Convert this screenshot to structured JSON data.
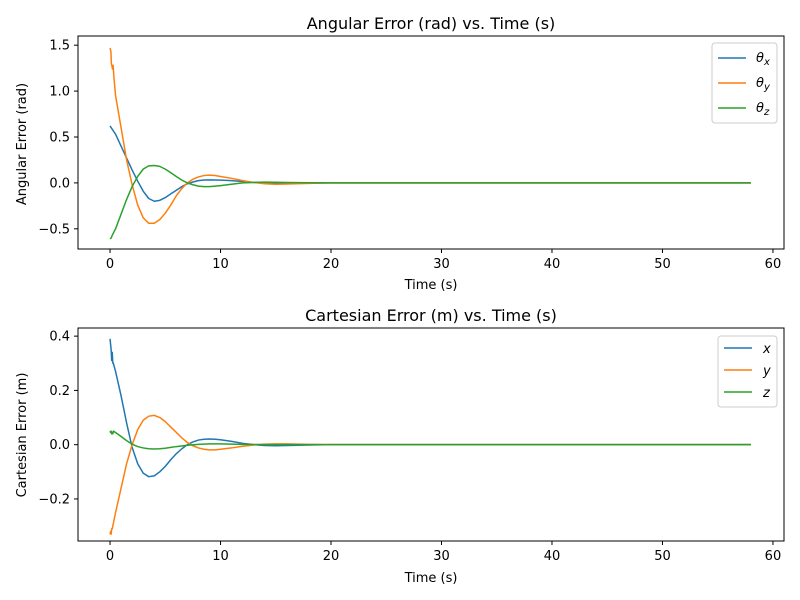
{
  "colors": {
    "c1": "#1f77b4",
    "c2": "#ff7f0e",
    "c3": "#2ca02c"
  },
  "chart_data": [
    {
      "type": "line",
      "title": "Angular Error (rad) vs. Time (s)",
      "xlabel": "Time (s)",
      "ylabel": "Angular Error (rad)",
      "xlim": [
        -2.9,
        61
      ],
      "ylim": [
        -0.72,
        1.6
      ],
      "xticks": [
        0,
        10,
        20,
        30,
        40,
        50,
        60
      ],
      "yticks": [
        -0.5,
        0.0,
        0.5,
        1.0,
        1.5
      ],
      "ytick_labels": [
        "−0.5",
        "0.0",
        "0.5",
        "1.0",
        "1.5"
      ],
      "grid": false,
      "legend": "top-right",
      "legend_entries": [
        {
          "base": "θ",
          "sub": "x"
        },
        {
          "base": "θ",
          "sub": "y"
        },
        {
          "base": "θ",
          "sub": "z"
        }
      ],
      "series": [
        {
          "color_key": "c1",
          "x": [
            0,
            0.5,
            1,
            1.5,
            2,
            2.5,
            3,
            3.5,
            4,
            4.5,
            5,
            5.5,
            6,
            6.5,
            7,
            7.5,
            8,
            8.5,
            9,
            9.5,
            10,
            11,
            12,
            13,
            14,
            16,
            18,
            20,
            25,
            30,
            40,
            50,
            58
          ],
          "y": [
            0.62,
            0.53,
            0.4,
            0.27,
            0.14,
            0.02,
            -0.09,
            -0.17,
            -0.2,
            -0.19,
            -0.16,
            -0.12,
            -0.08,
            -0.04,
            -0.01,
            0.01,
            0.025,
            0.032,
            0.033,
            0.032,
            0.03,
            0.025,
            0.015,
            0.005,
            0.0,
            -0.002,
            -0.001,
            0,
            0,
            0,
            0,
            0,
            0
          ]
        },
        {
          "color_key": "c2",
          "x": [
            0,
            0.08,
            0.12,
            0.18,
            0.22,
            0.28,
            0.35,
            0.5,
            1,
            1.5,
            2,
            2.5,
            3,
            3.5,
            4,
            4.5,
            5,
            5.5,
            6,
            6.5,
            7,
            7.5,
            8,
            8.5,
            9,
            9.5,
            10,
            11,
            12,
            13,
            14,
            15,
            16,
            18,
            20,
            25,
            30,
            40,
            50,
            58
          ],
          "y": [
            1.47,
            1.43,
            1.3,
            1.27,
            1.24,
            1.28,
            1.15,
            0.95,
            0.6,
            0.25,
            -0.02,
            -0.24,
            -0.38,
            -0.44,
            -0.44,
            -0.4,
            -0.33,
            -0.24,
            -0.14,
            -0.06,
            0.0,
            0.04,
            0.065,
            0.08,
            0.085,
            0.08,
            0.07,
            0.05,
            0.025,
            0.005,
            -0.01,
            -0.015,
            -0.012,
            -0.005,
            0,
            0,
            0,
            0,
            0,
            0
          ]
        },
        {
          "color_key": "c3",
          "x": [
            0,
            0.1,
            0.2,
            0.5,
            1,
            1.5,
            2,
            2.5,
            3,
            3.5,
            4,
            4.5,
            5,
            5.5,
            6,
            6.5,
            7,
            7.5,
            8,
            8.5,
            9,
            9.5,
            10,
            11,
            12,
            13,
            14,
            15,
            16,
            18,
            20,
            25,
            30,
            40,
            50,
            58
          ],
          "y": [
            -0.61,
            -0.6,
            -0.57,
            -0.5,
            -0.34,
            -0.18,
            -0.04,
            0.07,
            0.15,
            0.185,
            0.19,
            0.18,
            0.15,
            0.11,
            0.07,
            0.03,
            0.0,
            -0.02,
            -0.035,
            -0.04,
            -0.04,
            -0.035,
            -0.03,
            -0.015,
            0.0,
            0.005,
            0.008,
            0.007,
            0.005,
            0.002,
            0,
            0,
            0,
            0,
            0,
            0
          ]
        }
      ]
    },
    {
      "type": "line",
      "title": "Cartesian Error (m) vs. Time (s)",
      "xlabel": "Time (s)",
      "ylabel": "Cartesian Error (m)",
      "xlim": [
        -2.9,
        61
      ],
      "ylim": [
        -0.355,
        0.43
      ],
      "xticks": [
        0,
        10,
        20,
        30,
        40,
        50,
        60
      ],
      "yticks": [
        -0.2,
        0.0,
        0.2,
        0.4
      ],
      "ytick_labels": [
        "−0.2",
        "0.0",
        "0.2",
        "0.4"
      ],
      "grid": false,
      "legend": "top-right",
      "legend_entries": [
        {
          "base": "x",
          "sub": ""
        },
        {
          "base": "y",
          "sub": ""
        },
        {
          "base": "z",
          "sub": ""
        }
      ],
      "series": [
        {
          "color_key": "c1",
          "x": [
            0,
            0.05,
            0.1,
            0.15,
            0.2,
            0.25,
            0.3,
            0.5,
            1,
            1.5,
            2,
            2.5,
            3,
            3.5,
            4,
            4.5,
            5,
            5.5,
            6,
            6.5,
            7,
            7.5,
            8,
            8.5,
            9,
            9.5,
            10,
            11,
            12,
            13,
            14,
            15,
            16,
            18,
            20,
            25,
            30,
            40,
            50,
            58
          ],
          "y": [
            0.39,
            0.37,
            0.35,
            0.31,
            0.34,
            0.3,
            0.3,
            0.27,
            0.18,
            0.08,
            -0.01,
            -0.07,
            -0.105,
            -0.118,
            -0.115,
            -0.1,
            -0.08,
            -0.055,
            -0.033,
            -0.015,
            0.0,
            0.01,
            0.017,
            0.02,
            0.021,
            0.02,
            0.018,
            0.012,
            0.005,
            0.0,
            -0.003,
            -0.004,
            -0.003,
            -0.001,
            0,
            0,
            0,
            0,
            0,
            0
          ]
        },
        {
          "color_key": "c2",
          "x": [
            0,
            0.05,
            0.1,
            0.15,
            0.2,
            0.3,
            0.5,
            1,
            1.5,
            2,
            2.5,
            3,
            3.5,
            4,
            4.5,
            5,
            5.5,
            6,
            6.5,
            7,
            7.5,
            8,
            8.5,
            9,
            9.5,
            10,
            11,
            12,
            13,
            14,
            15,
            16,
            18,
            20,
            25,
            30,
            40,
            50,
            58
          ],
          "y": [
            -0.33,
            -0.32,
            -0.33,
            -0.31,
            -0.31,
            -0.29,
            -0.25,
            -0.16,
            -0.07,
            0.0,
            0.055,
            0.09,
            0.105,
            0.108,
            0.1,
            0.085,
            0.065,
            0.045,
            0.025,
            0.008,
            -0.004,
            -0.012,
            -0.017,
            -0.019,
            -0.019,
            -0.017,
            -0.012,
            -0.006,
            -0.001,
            0.002,
            0.003,
            0.003,
            0.001,
            0,
            0,
            0,
            0,
            0,
            0
          ]
        },
        {
          "color_key": "c3",
          "x": [
            0,
            0.05,
            0.1,
            0.15,
            0.2,
            0.25,
            0.3,
            0.5,
            1,
            1.5,
            2,
            2.5,
            3,
            3.5,
            4,
            4.5,
            5,
            5.5,
            6,
            7,
            8,
            9,
            10,
            11,
            12,
            14,
            16,
            20,
            25,
            30,
            40,
            50,
            58
          ],
          "y": [
            0.05,
            0.045,
            0.05,
            0.04,
            0.045,
            0.04,
            0.05,
            0.045,
            0.03,
            0.015,
            0.002,
            -0.007,
            -0.012,
            -0.015,
            -0.016,
            -0.015,
            -0.013,
            -0.01,
            -0.007,
            -0.002,
            0.001,
            0.003,
            0.003,
            0.002,
            0.001,
            0,
            0,
            0,
            0,
            0,
            0,
            0,
            0
          ]
        }
      ]
    }
  ]
}
